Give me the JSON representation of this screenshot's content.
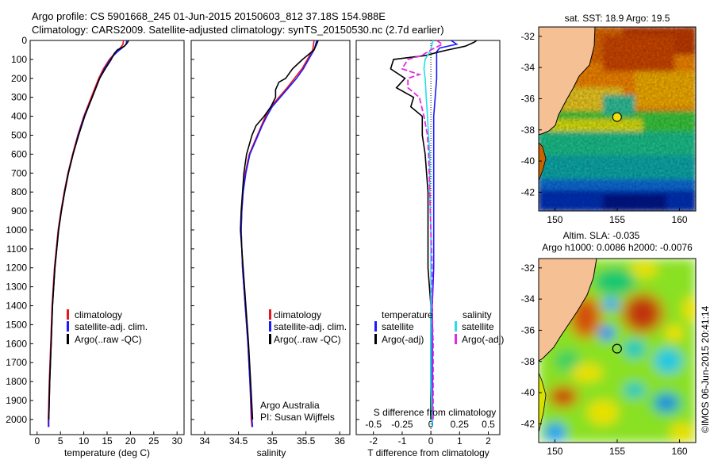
{
  "title_line1": "Argo profile: CS 5901668_245 01-Jun-2015 20150603_812 37.18S 154.988E",
  "title_line2": "Climatology: CARS2009. Satellite-adjusted climatology: synTS_20150530.nc (2.7d earlier)",
  "colors": {
    "climatology": "#e8141e",
    "satellite": "#1a1aff",
    "argo": "#000000",
    "cyan": "#22e0e6",
    "magenta": "#e628e6",
    "land": "#f6c095"
  },
  "depth_ticks": [
    "0",
    "100",
    "200",
    "300",
    "400",
    "500",
    "600",
    "700",
    "800",
    "900",
    "1000",
    "1100",
    "1200",
    "1300",
    "1400",
    "1500",
    "1600",
    "1700",
    "1800",
    "1900",
    "2000"
  ],
  "chart_data": [
    {
      "type": "line",
      "id": "temperature",
      "xlabel": "temperature (deg C)",
      "ylabel": "depth",
      "xlim": [
        -1.5,
        31.5
      ],
      "ylim": [
        0,
        2080
      ],
      "xticks": [
        0,
        5,
        10,
        15,
        20,
        25,
        30
      ],
      "xtick_labels": [
        "0",
        "5",
        "10",
        "15",
        "20",
        "25",
        "30"
      ],
      "legend": [
        "climatology",
        "satellite-adj. clim.",
        "Argo(..raw -QC)"
      ],
      "series": [
        {
          "name": "climatology",
          "depth": [
            0,
            20,
            40,
            60,
            80,
            100,
            150,
            200,
            300,
            400,
            500,
            600,
            700,
            800,
            900,
            1000,
            1200,
            1400,
            1600,
            1800,
            2000,
            2040
          ],
          "values": [
            18.5,
            18.4,
            17.8,
            17.0,
            16.2,
            15.5,
            14.2,
            13.2,
            11.6,
            10.0,
            8.7,
            7.6,
            6.6,
            5.8,
            5.1,
            4.5,
            3.7,
            3.2,
            2.9,
            2.6,
            2.4,
            2.4
          ]
        },
        {
          "name": "satellite-adj. clim.",
          "depth": [
            0,
            20,
            40,
            60,
            80,
            100,
            150,
            200,
            300,
            400,
            500,
            600,
            700,
            800,
            900,
            1000,
            1200,
            1400,
            1600,
            1800,
            2000,
            2040
          ],
          "values": [
            19.2,
            19.1,
            18.2,
            17.2,
            16.4,
            15.7,
            14.4,
            13.4,
            11.8,
            10.1,
            8.8,
            7.7,
            6.7,
            5.9,
            5.2,
            4.6,
            3.8,
            3.3,
            3.0,
            2.7,
            2.5,
            2.5
          ]
        },
        {
          "name": "Argo(..raw -QC)",
          "depth": [
            0,
            5,
            10,
            30,
            50,
            70,
            100,
            150,
            200,
            300,
            400,
            500,
            600,
            700,
            800,
            900,
            1000,
            1200,
            1400,
            1600,
            1800,
            2000
          ],
          "values": [
            19.6,
            19.5,
            19.4,
            18.7,
            17.2,
            16.5,
            15.9,
            14.6,
            13.4,
            11.8,
            10.2,
            8.9,
            7.7,
            6.7,
            5.9,
            5.2,
            4.6,
            3.8,
            3.3,
            3.0,
            2.7,
            2.5
          ]
        }
      ]
    },
    {
      "type": "line",
      "id": "salinity",
      "xlabel": "salinity",
      "ylabel": "depth",
      "xlim": [
        33.8,
        36.15
      ],
      "ylim": [
        0,
        2080
      ],
      "xticks": [
        34,
        34.5,
        35,
        35.5,
        36
      ],
      "xtick_labels": [
        "34",
        "34.5",
        "35",
        "35.5",
        "36"
      ],
      "legend": [
        "climatology",
        "satellite-adj. clim.",
        "Argo(..raw -QC)"
      ],
      "annotation": [
        "Argo Australia",
        "PI: Susan Wijffels"
      ],
      "series": [
        {
          "name": "climatology",
          "depth": [
            0,
            50,
            100,
            150,
            200,
            250,
            300,
            350,
            400,
            450,
            500,
            600,
            700,
            800,
            900,
            1000,
            1100,
            1200,
            1400,
            1600,
            1800,
            2000,
            2040
          ],
          "values": [
            35.62,
            35.6,
            35.52,
            35.44,
            35.33,
            35.22,
            35.1,
            34.98,
            34.9,
            34.84,
            34.78,
            34.66,
            34.6,
            34.57,
            34.55,
            34.54,
            34.55,
            34.56,
            34.6,
            34.64,
            34.67,
            34.69,
            34.7
          ]
        },
        {
          "name": "satellite-adj. clim.",
          "depth": [
            0,
            50,
            100,
            150,
            200,
            250,
            300,
            350,
            400,
            450,
            500,
            600,
            700,
            800,
            900,
            1000,
            1100,
            1200,
            1400,
            1600,
            1800,
            2000,
            2040
          ],
          "values": [
            35.66,
            35.62,
            35.54,
            35.46,
            35.36,
            35.24,
            35.12,
            35.0,
            34.92,
            34.85,
            34.79,
            34.67,
            34.61,
            34.57,
            34.55,
            34.54,
            34.55,
            34.56,
            34.6,
            34.64,
            34.67,
            34.7,
            34.71
          ]
        },
        {
          "name": "Argo(..raw -QC)",
          "depth": [
            0,
            10,
            50,
            100,
            150,
            200,
            220,
            260,
            300,
            350,
            400,
            450,
            500,
            600,
            700,
            800,
            900,
            1000,
            1100,
            1200,
            1400,
            1600,
            1800,
            2000
          ],
          "values": [
            35.68,
            35.67,
            35.62,
            35.45,
            35.3,
            35.2,
            35.1,
            35.05,
            35.05,
            34.98,
            34.88,
            34.76,
            34.7,
            34.62,
            34.58,
            34.56,
            34.54,
            34.53,
            34.55,
            34.57,
            34.61,
            34.65,
            34.68,
            34.71
          ]
        }
      ]
    },
    {
      "type": "line",
      "id": "difference",
      "xlabel": "T difference from climatology",
      "x2label": "S difference from climatology",
      "xlim": [
        -2.6,
        2.4
      ],
      "ylim": [
        0,
        2080
      ],
      "xticks": [
        -2,
        -1,
        0,
        1,
        2
      ],
      "xtick_labels": [
        "-2",
        "-1",
        "0",
        "1",
        "2"
      ],
      "s_xticks": [
        -0.5,
        -0.25,
        0,
        0.25,
        0.5
      ],
      "s_xtick_labels": [
        "-0.5",
        "-0.25",
        "0",
        "0.25",
        "0.5"
      ],
      "legend_temperature_title": "temperature",
      "legend_salinity_title": "salinity",
      "legend": [
        "satellite",
        "Argo(-adj)",
        "satellite",
        "Argo(-adj)"
      ],
      "series": [
        {
          "name": "T satellite",
          "depth": [
            0,
            20,
            40,
            60,
            80,
            100,
            200,
            400,
            600,
            800,
            1000,
            1200,
            1400,
            1600,
            1800,
            2000,
            2040
          ],
          "values": [
            0.7,
            0.9,
            0.3,
            0.2,
            0.2,
            0.2,
            0.2,
            0.1,
            0.1,
            0.1,
            0.1,
            0.1,
            0.05,
            0.05,
            0.05,
            0.05,
            0.05
          ]
        },
        {
          "name": "T Argo(-adj)",
          "depth": [
            0,
            10,
            30,
            50,
            60,
            80,
            100,
            150,
            200,
            250,
            300,
            350,
            400,
            500,
            600,
            800,
            1000,
            1200,
            1400,
            1600,
            1800,
            2000
          ],
          "values": [
            1.6,
            1.5,
            1.2,
            0.6,
            0.3,
            -0.2,
            -1.3,
            -1.4,
            -0.9,
            -1.2,
            -0.6,
            -0.7,
            -0.3,
            -0.3,
            -0.2,
            -0.1,
            -0.1,
            -0.1,
            0.0,
            0.0,
            0.0,
            0.0
          ]
        },
        {
          "name": "S satellite",
          "depth": [
            0,
            20,
            50,
            100,
            150,
            200,
            300,
            400,
            500,
            600,
            800,
            1000,
            1200,
            1400,
            1600,
            1800,
            2000,
            2040
          ],
          "values": [
            0.02,
            0.01,
            0.0,
            -0.05,
            -0.06,
            -0.05,
            -0.04,
            -0.03,
            -0.02,
            -0.01,
            -0.01,
            0.0,
            0.0,
            0.0,
            0.0,
            0.0,
            0.01,
            0.01
          ]
        },
        {
          "name": "S Argo(-adj)",
          "depth": [
            0,
            20,
            50,
            80,
            100,
            150,
            180,
            200,
            250,
            300,
            400,
            500,
            600,
            800,
            1000,
            1200,
            1400,
            1600,
            1800,
            2000
          ],
          "values": [
            0.05,
            0.1,
            0.0,
            -0.08,
            -0.2,
            -0.25,
            -0.1,
            -0.2,
            -0.2,
            -0.1,
            -0.06,
            -0.03,
            -0.02,
            -0.01,
            0.0,
            0.01,
            0.01,
            0.02,
            0.02,
            0.02
          ]
        }
      ]
    },
    {
      "type": "heatmap",
      "id": "sst-map",
      "title": "sat. SST: 18.9  Argo: 19.5",
      "xlim": [
        148.7,
        161.3
      ],
      "ylim": [
        -43.2,
        -31.4
      ],
      "xticks": [
        150,
        155,
        160
      ],
      "xtick_labels": [
        "150",
        "155",
        "160"
      ],
      "yticks": [
        -32,
        -34,
        -36,
        -38,
        -40,
        -42
      ],
      "ytick_labels": [
        "-32",
        "-34",
        "-36",
        "-38",
        "-40",
        "-42"
      ],
      "marker": {
        "lon": 154.988,
        "lat": -37.18
      }
    },
    {
      "type": "heatmap",
      "id": "sla-map",
      "title": "Altim. SLA: -0.035",
      "subtitle": "Argo h1000: 0.0086 h2000: -0.0076",
      "xlim": [
        148.7,
        161.3
      ],
      "ylim": [
        -43.2,
        -31.4
      ],
      "xticks": [
        150,
        155,
        160
      ],
      "xtick_labels": [
        "150",
        "155",
        "160"
      ],
      "yticks": [
        -32,
        -34,
        -36,
        -38,
        -40,
        -42
      ],
      "ytick_labels": [
        "-32",
        "-34",
        "-36",
        "-38",
        "-40",
        "-42"
      ],
      "marker": {
        "lon": 154.988,
        "lat": -37.18
      }
    }
  ],
  "credit": "©IMOS 06-Jun-2015 20:41:14"
}
